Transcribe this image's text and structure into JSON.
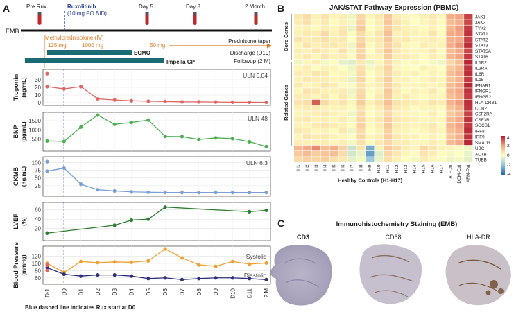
{
  "panel_labels": {
    "a": "A",
    "b": "B",
    "c": "C"
  },
  "timeline": {
    "pre": "Pre Rux",
    "rux_title": "Ruxolitinib",
    "rux_dose": "(10 mg PO BID)",
    "day5": "Day 5",
    "day8": "Day 8",
    "month2": "2 Month",
    "emb": "EMB",
    "mp_title": "Methylprednisolone (IV)",
    "mp_125": "125 mg",
    "mp_1000": "1000 mg",
    "mp_50": "50 mg",
    "pred_taper": "Prednisone taper",
    "ecmo": "ECMO",
    "impella": "Impella CP",
    "discharge": "Discharge (D19)",
    "followup": "Followup (2 M)"
  },
  "x_labels": [
    "D-1",
    "D0",
    "D1",
    "D2",
    "D3",
    "D4",
    "D5",
    "D6",
    "D7",
    "D8",
    "D9",
    "D10",
    "D11",
    "2 M"
  ],
  "footnote": "Blue dashed line indicates Rux start at D0",
  "chart_data": [
    {
      "type": "line",
      "name": "troponin",
      "ylabel1": "Troponin",
      "ylabel2": "(ng/mL)",
      "uln": "ULN 0.04",
      "color": "#e06666",
      "ylim": [
        0,
        40
      ],
      "yticks": [
        0,
        10,
        20,
        30
      ],
      "x": [
        -1,
        0,
        1,
        2,
        3,
        4,
        5,
        6,
        7,
        8,
        9,
        10,
        11,
        12
      ],
      "values": [
        21,
        18,
        21,
        5,
        3.5,
        2.5,
        2,
        1.5,
        1,
        1,
        0.8,
        0.6,
        0.5,
        0.4
      ],
      "extra_points": [
        {
          "x": -1,
          "y": 38
        }
      ]
    },
    {
      "type": "line",
      "name": "bnp",
      "ylabel1": "BNP",
      "ylabel2": "(pg/mL)",
      "uln": "ULN 48",
      "color": "#4caf50",
      "ylim": [
        0,
        1800
      ],
      "yticks": [
        500,
        1000,
        1500
      ],
      "x": [
        -1,
        0,
        1,
        2,
        3,
        4,
        5,
        6,
        7,
        8,
        9,
        10,
        11,
        12
      ],
      "values": [
        400,
        380,
        1150,
        1800,
        1300,
        1400,
        1530,
        650,
        640,
        480,
        570,
        530,
        360,
        100
      ],
      "extra_points": []
    },
    {
      "type": "line",
      "name": "ckmb",
      "ylabel1": "CKMB",
      "ylabel2": "(ng/mL)",
      "uln": "ULN 6.3",
      "color": "#7b9fd4",
      "ylim": [
        0,
        110
      ],
      "yticks": [
        25,
        50,
        75,
        100
      ],
      "x": [
        -1,
        0,
        1,
        2,
        3,
        4,
        5,
        6,
        7,
        8,
        9,
        10,
        11,
        12
      ],
      "values": [
        72,
        82,
        30,
        12,
        8,
        5,
        4,
        3,
        3,
        3,
        3,
        3,
        3,
        3
      ],
      "extra_points": [
        {
          "x": -1,
          "y": 103
        }
      ]
    },
    {
      "type": "line",
      "name": "lvef",
      "ylabel1": "LVEF",
      "ylabel2": "(%)",
      "uln": "",
      "color": "#2e7d32",
      "ylim": [
        0,
        70
      ],
      "yticks": [
        20,
        40,
        60
      ],
      "x": [
        -1,
        3,
        4,
        5,
        6,
        11,
        12
      ],
      "values": [
        10,
        27,
        38,
        40,
        66,
        56,
        59
      ],
      "extra_points": []
    },
    {
      "type": "line",
      "name": "bp",
      "ylabel1": "Blood Pressure",
      "ylabel2": "(mmHg)",
      "uln": "",
      "ylim": [
        50,
        140
      ],
      "yticks": [
        60,
        80,
        100,
        120
      ],
      "series": [
        {
          "name": "Systolic",
          "color": "#f0a030",
          "x": [
            -1,
            0,
            1,
            2,
            3,
            4,
            5,
            6,
            7,
            8,
            9,
            10,
            11,
            12
          ],
          "values": [
            100,
            75,
            105,
            102,
            104,
            103,
            107,
            140,
            115,
            96,
            92,
            105,
            98,
            101
          ]
        },
        {
          "name": "Diastolic",
          "color": "#2e2e7a",
          "x": [
            -1,
            0,
            1,
            2,
            3,
            4,
            5,
            6,
            7,
            8,
            9,
            10,
            11,
            12
          ],
          "values": [
            88,
            70,
            65,
            68,
            68,
            65,
            58,
            60,
            55,
            58,
            60,
            60,
            58,
            55
          ]
        }
      ],
      "extra_points": [
        {
          "x": -1,
          "y": 95,
          "color": "#e06666"
        },
        {
          "x": -1,
          "y": 80,
          "color": "#e06666"
        }
      ]
    },
    {
      "type": "heatmap",
      "name": "jak-stat",
      "title": "JAK/STAT Pathway Expression (PBMC)",
      "rows": [
        "JAK1",
        "JAK2",
        "TYK2",
        "STAT1",
        "STAT2",
        "STAT3",
        "STAT5A",
        "STAT6",
        "IL1R2",
        "IL3RA",
        "IL6R",
        "IL15",
        "IFNAR1",
        "IFNGR1",
        "IFNGR2",
        "HLA-DRB1",
        "CCR2",
        "CSF2RA",
        "CSF3R",
        "SOCS1",
        "IRF8",
        "IRF9",
        "SMAD3",
        "UBC",
        "ACTB",
        "TUBB"
      ],
      "columns": [
        "H1",
        "H2",
        "H3",
        "H4",
        "H5",
        "H6",
        "H7",
        "H8",
        "H9",
        "H10",
        "H11",
        "H12",
        "H13",
        "H14",
        "H15",
        "H16",
        "H17",
        "AL-Ctrl",
        "DCM-Ctrl",
        "AFM-Pat"
      ],
      "group_label": "Healthy Controls (H1-H17)",
      "core_label": "Core Genes",
      "related_label": "Related Genes",
      "legend_ticks": [
        4,
        2,
        0,
        -2,
        -4
      ],
      "values": [
        [
          0.5,
          0.8,
          0.3,
          0.6,
          0.2,
          0.4,
          -0.3,
          0.9,
          0.2,
          0.5,
          1.2,
          0.4,
          0.2,
          0.1,
          0.3,
          0.5,
          0.2,
          1.8,
          2.0,
          3.4
        ],
        [
          0.4,
          0.7,
          0.2,
          0.5,
          0.1,
          0.3,
          -0.2,
          1.0,
          0.1,
          0.4,
          1.3,
          0.6,
          0.3,
          0.0,
          0.2,
          0.4,
          0.1,
          1.5,
          1.8,
          3.3
        ],
        [
          0.2,
          0.3,
          0.1,
          0.4,
          0.2,
          0.5,
          -0.4,
          1.2,
          0.0,
          0.3,
          1.1,
          0.5,
          0.3,
          0.2,
          0.1,
          0.3,
          0.0,
          1.6,
          2.1,
          3.5
        ],
        [
          0.3,
          0.5,
          0.4,
          0.8,
          0.3,
          0.6,
          -0.1,
          0.8,
          0.2,
          0.6,
          1.4,
          0.3,
          0.4,
          0.3,
          0.2,
          0.6,
          0.1,
          1.9,
          2.0,
          3.6
        ],
        [
          0.6,
          0.4,
          0.5,
          0.7,
          0.4,
          0.5,
          0.0,
          0.9,
          0.3,
          0.5,
          1.2,
          0.4,
          0.5,
          0.2,
          0.3,
          0.4,
          0.2,
          1.7,
          1.9,
          3.4
        ],
        [
          0.2,
          0.6,
          0.3,
          0.5,
          0.5,
          0.4,
          -0.3,
          1.1,
          0.1,
          0.4,
          1.0,
          0.6,
          0.2,
          0.1,
          0.4,
          0.3,
          0.3,
          1.8,
          2.2,
          3.7
        ],
        [
          0.4,
          0.3,
          0.6,
          0.4,
          0.2,
          0.7,
          -0.2,
          0.9,
          0.0,
          0.5,
          1.3,
          0.5,
          0.3,
          0.2,
          0.2,
          0.5,
          0.1,
          1.5,
          1.9,
          3.3
        ],
        [
          0.3,
          0.5,
          0.2,
          0.6,
          0.3,
          0.4,
          -0.1,
          1.0,
          0.2,
          0.3,
          1.1,
          0.4,
          0.4,
          0.3,
          0.1,
          0.4,
          0.2,
          1.6,
          2.0,
          3.5
        ],
        [
          -0.3,
          0.2,
          0.4,
          -0.2,
          0.1,
          -0.5,
          -0.6,
          0.5,
          -0.4,
          0.2,
          0.8,
          0.3,
          -0.1,
          0.2,
          0.0,
          -0.2,
          -0.3,
          0.9,
          1.4,
          3.8
        ],
        [
          0.2,
          0.4,
          0.1,
          0.3,
          0.2,
          0.0,
          -0.3,
          0.7,
          -0.2,
          0.4,
          1.0,
          0.2,
          0.1,
          0.0,
          0.3,
          0.2,
          0.0,
          1.2,
          1.6,
          3.6
        ],
        [
          0.4,
          0.3,
          0.6,
          0.5,
          0.1,
          0.2,
          -0.2,
          0.8,
          0.0,
          0.3,
          0.9,
          0.4,
          0.2,
          0.3,
          0.1,
          0.3,
          0.1,
          1.4,
          1.8,
          3.7
        ],
        [
          0.3,
          0.5,
          0.4,
          0.4,
          0.2,
          0.3,
          -0.4,
          0.9,
          0.1,
          0.5,
          1.1,
          0.3,
          0.3,
          0.1,
          0.2,
          0.4,
          0.2,
          1.3,
          1.7,
          3.5
        ],
        [
          0.5,
          0.2,
          0.3,
          0.6,
          0.4,
          0.1,
          -0.1,
          0.7,
          0.2,
          0.4,
          1.0,
          0.5,
          0.2,
          0.2,
          0.3,
          0.2,
          0.3,
          1.5,
          1.9,
          3.8
        ],
        [
          0.2,
          0.6,
          0.5,
          0.3,
          0.3,
          0.4,
          -0.3,
          0.8,
          -0.1,
          0.3,
          1.2,
          0.4,
          0.1,
          0.3,
          0.2,
          0.5,
          0.1,
          1.6,
          2.0,
          3.6
        ],
        [
          0.4,
          0.4,
          0.2,
          0.5,
          0.1,
          0.5,
          -0.2,
          0.9,
          0.0,
          0.5,
          1.1,
          0.3,
          0.4,
          0.2,
          0.1,
          0.3,
          0.2,
          1.4,
          1.8,
          3.5
        ],
        [
          0.6,
          0.7,
          3.0,
          0.8,
          0.4,
          0.6,
          0.2,
          1.1,
          0.3,
          0.7,
          1.4,
          0.6,
          0.5,
          0.4,
          0.3,
          0.6,
          0.4,
          1.7,
          2.1,
          3.7
        ],
        [
          0.3,
          0.4,
          0.5,
          0.3,
          0.2,
          0.3,
          -0.1,
          0.7,
          0.1,
          0.4,
          1.0,
          0.4,
          0.3,
          0.1,
          0.2,
          0.3,
          0.1,
          1.3,
          1.7,
          3.6
        ],
        [
          0.2,
          0.3,
          0.4,
          0.5,
          0.3,
          0.2,
          -0.3,
          0.8,
          0.0,
          0.3,
          0.9,
          0.3,
          0.2,
          0.2,
          0.1,
          0.4,
          0.0,
          1.2,
          1.6,
          3.4
        ],
        [
          0.4,
          0.5,
          0.3,
          0.4,
          0.2,
          0.4,
          -0.2,
          0.9,
          0.2,
          0.5,
          1.1,
          0.5,
          0.4,
          0.3,
          0.2,
          0.3,
          0.2,
          1.5,
          1.9,
          3.6
        ],
        [
          0.3,
          0.2,
          0.5,
          0.6,
          0.4,
          0.3,
          0.0,
          1.0,
          0.1,
          0.4,
          1.2,
          0.4,
          0.3,
          0.2,
          0.3,
          0.5,
          0.1,
          1.6,
          2.0,
          3.5
        ],
        [
          0.5,
          0.4,
          0.2,
          0.3,
          0.1,
          0.5,
          -0.3,
          0.8,
          0.0,
          0.3,
          1.0,
          0.3,
          0.2,
          0.1,
          0.2,
          0.4,
          0.2,
          1.4,
          1.8,
          3.7
        ],
        [
          0.2,
          0.6,
          0.4,
          0.5,
          0.3,
          0.2,
          -0.1,
          0.9,
          0.2,
          0.4,
          1.1,
          0.5,
          0.3,
          0.3,
          0.1,
          0.3,
          0.1,
          1.3,
          1.7,
          3.6
        ],
        [
          0.4,
          0.3,
          0.3,
          0.4,
          0.2,
          0.4,
          -0.2,
          0.7,
          0.1,
          0.5,
          0.9,
          0.4,
          0.4,
          0.2,
          0.2,
          0.4,
          0.2,
          1.5,
          1.9,
          3.8
        ],
        [
          1.6,
          1.9,
          2.4,
          1.5,
          1.8,
          1.0,
          -1.0,
          0.6,
          -2.5,
          0.3,
          1.2,
          0.8,
          0.4,
          0.2,
          0.9,
          0.6,
          0.3,
          0.2,
          0.1,
          -0.3
        ],
        [
          1.2,
          1.5,
          1.1,
          1.3,
          1.4,
          0.8,
          -0.8,
          -0.4,
          -2.8,
          -0.6,
          0.9,
          0.5,
          0.2,
          -0.1,
          0.6,
          0.4,
          0.1,
          -0.2,
          0.0,
          -0.4
        ],
        [
          0.8,
          1.0,
          0.9,
          1.1,
          0.7,
          0.5,
          -0.5,
          -0.2,
          -1.8,
          -0.4,
          0.7,
          0.3,
          0.0,
          -0.2,
          0.4,
          0.2,
          -0.1,
          -0.3,
          -0.2,
          -0.5
        ]
      ]
    }
  ],
  "ihc": {
    "title": "Immunohistochemistry Staining (EMB)",
    "stains": [
      "CD3",
      "CD68",
      "HLA-DR"
    ]
  }
}
